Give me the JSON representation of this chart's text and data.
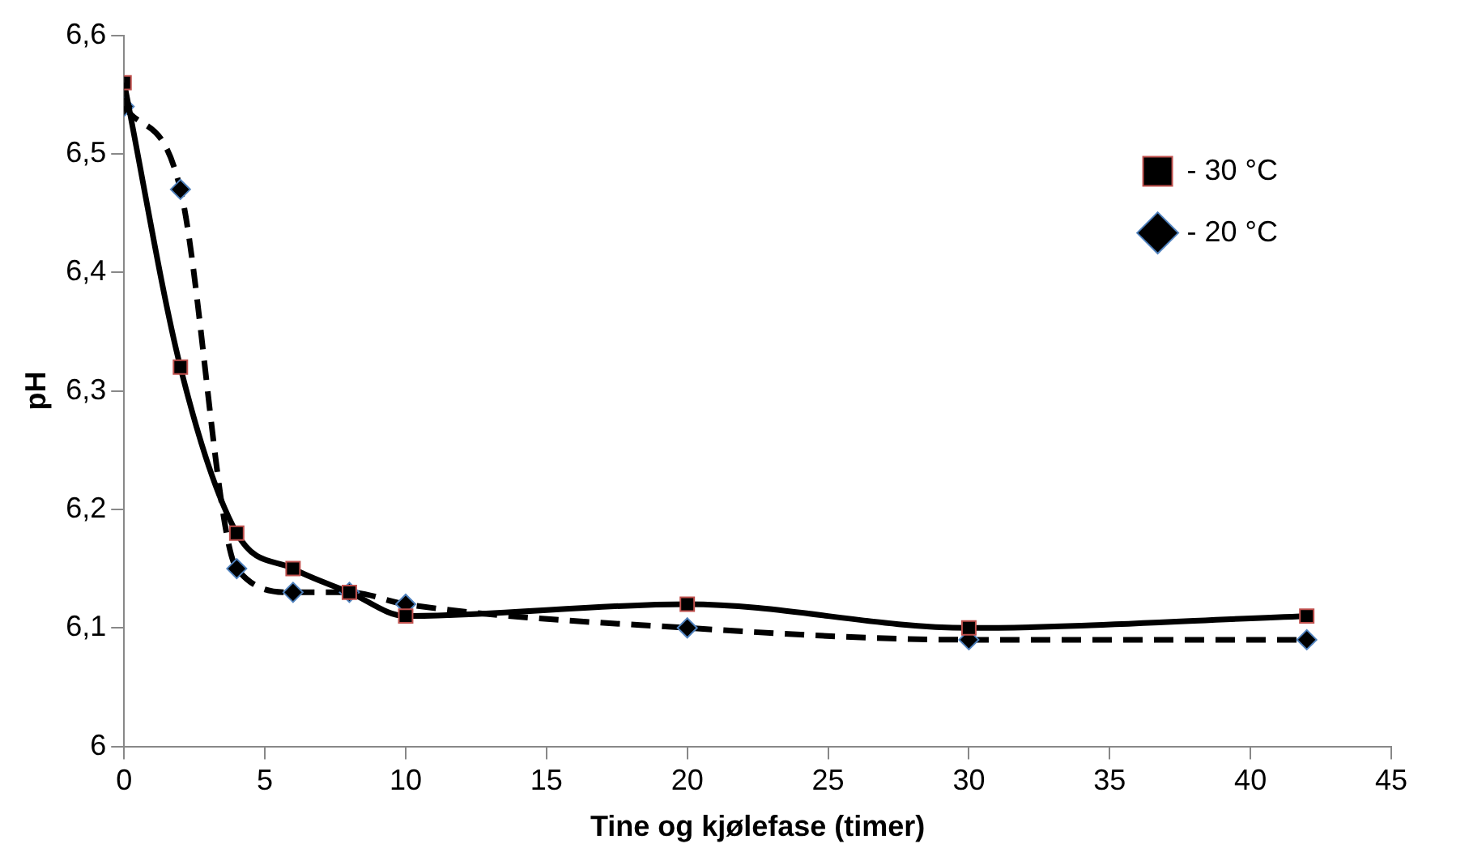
{
  "chart_data": {
    "type": "line",
    "xlabel": "Tine og kjølefase (timer)",
    "ylabel": "pH",
    "xlim": [
      0,
      45
    ],
    "xticks": [
      0,
      5,
      10,
      15,
      20,
      25,
      30,
      35,
      40,
      45
    ],
    "ylim": [
      6,
      6.6
    ],
    "yticks": [
      {
        "value": 6,
        "label": "6"
      },
      {
        "value": 6.1,
        "label": "6,1"
      },
      {
        "value": 6.2,
        "label": "6,2"
      },
      {
        "value": 6.3,
        "label": "6,3"
      },
      {
        "value": 6.4,
        "label": "6,4"
      },
      {
        "value": 6.5,
        "label": "6,5"
      },
      {
        "value": 6.6,
        "label": "6,6"
      }
    ],
    "x": [
      0,
      2,
      4,
      6,
      8,
      10,
      20,
      30,
      42
    ],
    "grid": false,
    "legend": "top right",
    "series": [
      {
        "name": "- 20 °C",
        "color": "#000000",
        "marker": "diamond",
        "line_style": "dashed",
        "values": [
          6.54,
          6.47,
          6.15,
          6.13,
          6.13,
          6.12,
          6.1,
          6.09,
          6.09
        ]
      },
      {
        "name": "- 30 °C",
        "color": "#000000",
        "marker": "square",
        "line_style": "solid",
        "values": [
          6.56,
          6.32,
          6.18,
          6.15,
          6.13,
          6.11,
          6.12,
          6.1,
          6.11
        ]
      }
    ]
  }
}
